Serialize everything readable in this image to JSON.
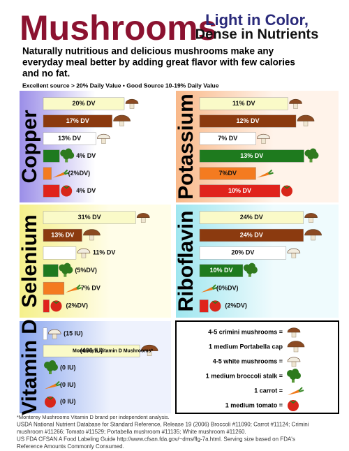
{
  "header": {
    "title": "Mushrooms",
    "tagline": [
      "Light in Color,",
      "Dense in Nutrients"
    ],
    "subtitle": [
      "Naturally nutritious and delicious mushrooms make any",
      "everyday meal better by adding great flavor with few calories",
      "and no fat."
    ],
    "key": "Excellent source > 20% Daily Value • Good Source 10-19% Daily Value"
  },
  "chart_data": [
    {
      "type": "bar",
      "title": "Copper",
      "values": [
        20,
        17,
        13,
        4,
        2,
        4
      ],
      "value_labels": [
        "20% DV",
        "17% DV",
        "13% DV",
        "4% DV",
        "(2%DV)",
        "4% DV"
      ],
      "colors": [
        "#fafac8",
        "#8b3a0f",
        "#ffffff",
        "#1e7a1e",
        "#f47b20",
        "#e0231c"
      ],
      "xlim": [
        0,
        25
      ]
    },
    {
      "type": "bar",
      "title": "Potassium",
      "values": [
        11,
        12,
        7,
        13,
        7,
        10
      ],
      "value_labels": [
        "11% DV",
        "12% DV",
        "7% DV",
        "13% DV",
        "7%DV",
        "10% DV"
      ],
      "colors": [
        "#fafac8",
        "#8b3a0f",
        "#ffffff",
        "#1e7a1e",
        "#f47b20",
        "#e0231c"
      ],
      "xlim": [
        0,
        14
      ]
    },
    {
      "type": "bar",
      "title": "Selenium",
      "values": [
        31,
        13,
        11,
        5,
        7,
        2
      ],
      "value_labels": [
        "31% DV",
        "13% DV",
        "11% DV",
        "(5%DV)",
        "7% DV",
        "(2%DV)"
      ],
      "colors": [
        "#fafac8",
        "#8b3a0f",
        "#ffffff",
        "#1e7a1e",
        "#f47b20",
        "#e0231c"
      ],
      "xlim": [
        0,
        34
      ]
    },
    {
      "type": "bar",
      "title": "Riboflavin",
      "values": [
        24,
        24,
        20,
        10,
        0,
        2
      ],
      "value_labels": [
        "24% DV",
        "24% DV",
        "20% DV",
        "10% DV",
        "(0%DV)",
        "(2%DV)"
      ],
      "colors": [
        "#fafac8",
        "#8b3a0f",
        "#ffffff",
        "#1e7a1e",
        "#f47b20",
        "#e0231c"
      ],
      "xlim": [
        0,
        26
      ]
    },
    {
      "type": "bar",
      "title": "Vitamin D",
      "values": [
        15,
        400,
        0,
        0,
        0
      ],
      "value_labels": [
        "(15 IU)",
        "(400 IU)",
        "(0 IU)",
        "(0 IU)",
        "(0 IU)"
      ],
      "annotation": "Monterey's Vitamin D Mushrooms*",
      "colors": [
        "#ffffff",
        "#fafac8",
        "#1e7a1e",
        "#f47b20",
        "#e0231c"
      ],
      "xlim": [
        0,
        420
      ]
    }
  ],
  "legend": [
    "4-5 crimini mushrooms =",
    "1 medium Portabella cap",
    "4-5 white mushrooms =",
    "1 medium broccoli stalk =",
    "1 carrot =",
    "1 medium tomato ="
  ],
  "footnotes": [
    "*Monterey Mushrooms Vitamin D brand per independent analysis.",
    "USDA National Nutrient Database for Standard Reference, Release 19 (2006) Broccoli #11090; Carrot #11124; Crimini",
    "mushroom #11266; Tomato #11529; Portabella mushroom #11135; White mushroom #11260.",
    "US FDA CFSAN A Food Labeling Guide http://www.cfsan.fda.gov/~dms/flg-7a.html. Serving size based on FDA's",
    "Reference Amounts Commonly Consumed."
  ]
}
